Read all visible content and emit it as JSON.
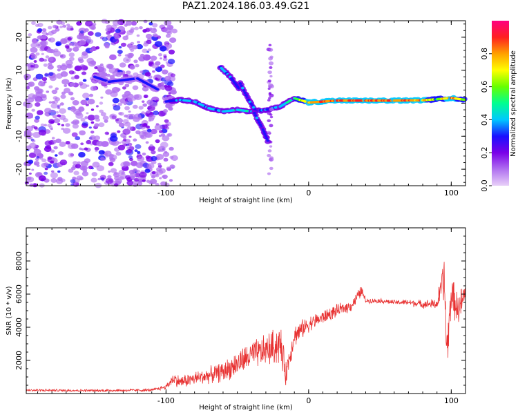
{
  "title": "PAZ1.2024.186.03.49.G21",
  "colors": {
    "snr_line": "#e83232",
    "colormap": [
      "#e8d0f8",
      "#b070f0",
      "#7a00e8",
      "#1a10ff",
      "#00c8ff",
      "#00ff90",
      "#66ff00",
      "#ffff00",
      "#ffa000",
      "#ff2020",
      "#ff0080"
    ]
  },
  "chart_data": [
    {
      "type": "heatmap",
      "xlabel": "Height of straight line (km)",
      "ylabel": "Frequency (Hz)",
      "xlim": [
        -198,
        110
      ],
      "ylim": [
        -25,
        25
      ],
      "x_ticks": [
        -100,
        0,
        100
      ],
      "y_ticks": [
        -20,
        -10,
        0,
        10,
        20
      ],
      "colorbar": {
        "label": "Normalized spectral amplitude",
        "range": [
          0,
          1
        ],
        "ticks": [
          0.0,
          0.2,
          0.4,
          0.6,
          0.8
        ]
      },
      "features": [
        {
          "name": "noise-cloud",
          "x_range": [
            -198,
            -100
          ],
          "y_range": [
            -25,
            25
          ],
          "amplitude": 0.15
        },
        {
          "name": "upper-branch",
          "x": [
            -150,
            -140,
            -120,
            -105
          ],
          "y": [
            8,
            6.5,
            7.5,
            4
          ],
          "amplitude": 0.3
        },
        {
          "name": "isolated-blob",
          "x": -102,
          "y": 16.5,
          "amplitude": 0.25
        },
        {
          "name": "ridge-main",
          "x": [
            -100,
            -90,
            -80,
            -70,
            -60,
            -50,
            -40,
            -30,
            -20,
            -10,
            0,
            20,
            40,
            60,
            80,
            90,
            100,
            110
          ],
          "y": [
            0.5,
            1.0,
            0.5,
            -1.5,
            -2.5,
            -2.0,
            -2.5,
            -2.0,
            -1.0,
            1.5,
            0.2,
            0.8,
            0.8,
            0.8,
            0.9,
            1.2,
            1.6,
            1.0
          ],
          "amplitude": [
            0.3,
            0.4,
            0.4,
            0.4,
            0.4,
            0.45,
            0.45,
            0.35,
            0.4,
            0.5,
            0.85,
            0.9,
            0.9,
            0.9,
            0.85,
            0.6,
            0.9,
            0.6
          ]
        },
        {
          "name": "diagonal-upper",
          "x": [
            -62,
            -55,
            -48
          ],
          "y": [
            11,
            8,
            4
          ],
          "amplitude": 0.35
        },
        {
          "name": "diagonal-mid",
          "x": [
            -48,
            -42,
            -36
          ],
          "y": [
            6,
            1,
            -3
          ],
          "amplitude": 0.35
        },
        {
          "name": "diagonal-lower",
          "x": [
            -38,
            -32,
            -28
          ],
          "y": [
            -3,
            -8,
            -12
          ],
          "amplitude": 0.35
        },
        {
          "name": "vertical-streak",
          "x": [
            -27,
            -27
          ],
          "y": [
            -22,
            20
          ],
          "amplitude": 0.15
        }
      ]
    },
    {
      "type": "line",
      "xlabel": "Height of straight line (km)",
      "ylabel": "SNR (10 * v/v)",
      "xlim": [
        -198,
        110
      ],
      "ylim": [
        0,
        10000
      ],
      "x_ticks": [
        -100,
        0,
        100
      ],
      "y_ticks": [
        2000,
        4000,
        6000,
        8000
      ],
      "series": [
        {
          "x": [
            -198,
            -150,
            -110,
            -100,
            -95,
            -90,
            -80,
            -70,
            -60,
            -50,
            -40,
            -30,
            -20,
            -16,
            -10,
            0,
            10,
            20,
            30,
            37,
            40,
            50,
            60,
            70,
            80,
            90,
            95,
            97,
            100,
            105,
            110
          ],
          "y": [
            200,
            180,
            200,
            400,
            900,
            700,
            900,
            1100,
            1300,
            1800,
            2300,
            2600,
            3000,
            1200,
            3500,
            4200,
            4600,
            5000,
            5300,
            6200,
            5600,
            5600,
            5500,
            5500,
            5400,
            5400,
            7000,
            2500,
            6000,
            5000,
            6000
          ],
          "noise": [
            80,
            80,
            90,
            150,
            400,
            400,
            450,
            500,
            650,
            800,
            900,
            1000,
            1300,
            800,
            700,
            500,
            450,
            400,
            350,
            400,
            150,
            150,
            150,
            200,
            250,
            350,
            1500,
            1500,
            1200,
            1000,
            1300
          ]
        }
      ]
    }
  ]
}
